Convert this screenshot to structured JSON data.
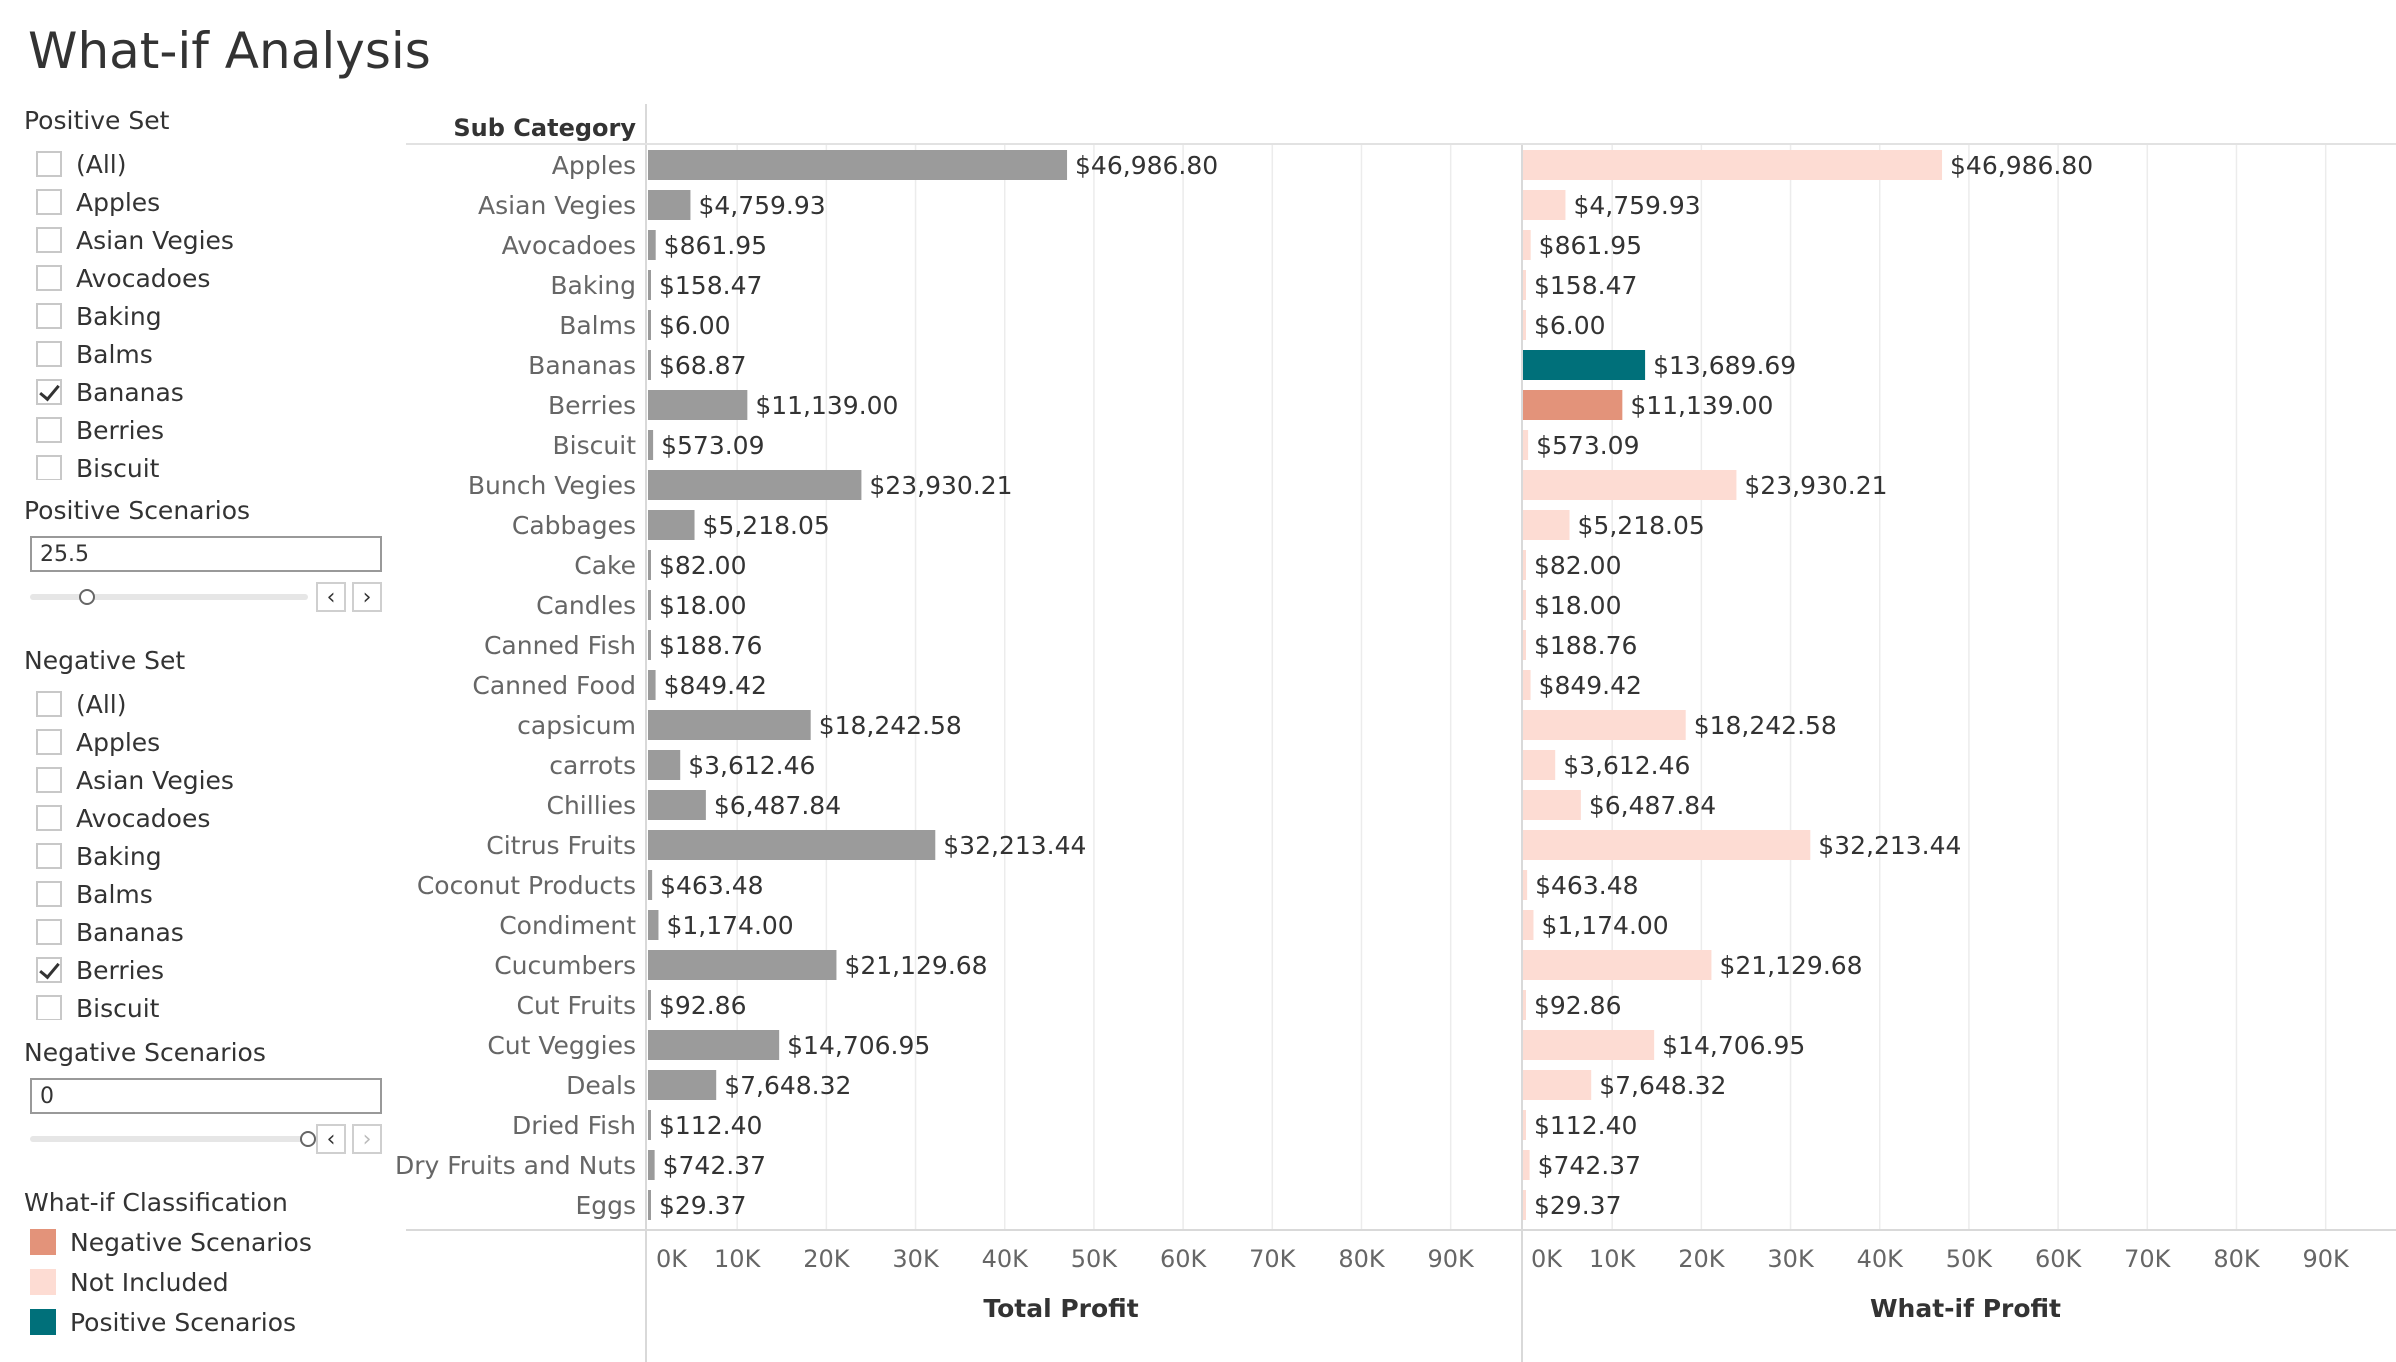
{
  "title": "What-if Analysis",
  "positive_set": {
    "label": "Positive Set",
    "items": [
      {
        "label": "(All)",
        "checked": false
      },
      {
        "label": "Apples",
        "checked": false
      },
      {
        "label": "Asian Vegies",
        "checked": false
      },
      {
        "label": "Avocadoes",
        "checked": false
      },
      {
        "label": "Baking",
        "checked": false
      },
      {
        "label": "Balms",
        "checked": false
      },
      {
        "label": "Bananas",
        "checked": true
      },
      {
        "label": "Berries",
        "checked": false
      },
      {
        "label": "Biscuit",
        "checked": false
      }
    ]
  },
  "positive_scenarios": {
    "label": "Positive Scenarios",
    "value": "25.5",
    "slider_fraction": 0.18
  },
  "negative_set": {
    "label": "Negative Set",
    "items": [
      {
        "label": "(All)",
        "checked": false
      },
      {
        "label": "Apples",
        "checked": false
      },
      {
        "label": "Asian Vegies",
        "checked": false
      },
      {
        "label": "Avocadoes",
        "checked": false
      },
      {
        "label": "Baking",
        "checked": false
      },
      {
        "label": "Balms",
        "checked": false
      },
      {
        "label": "Bananas",
        "checked": false
      },
      {
        "label": "Berries",
        "checked": true
      },
      {
        "label": "Biscuit",
        "checked": false
      }
    ]
  },
  "negative_scenarios": {
    "label": "Negative Scenarios",
    "value": "0",
    "slider_fraction": 1.0
  },
  "legend": {
    "title": "What-if Classification",
    "items": [
      {
        "label": "Negative Scenarios",
        "color": "#e3937a"
      },
      {
        "label": "Not Included",
        "color": "#fddcd3"
      },
      {
        "label": "Positive Scenarios",
        "color": "#00707a"
      }
    ]
  },
  "chart_data": {
    "type": "bar",
    "row_header": "Sub Category",
    "categories": [
      "Apples",
      "Asian Vegies",
      "Avocadoes",
      "Baking",
      "Balms",
      "Bananas",
      "Berries",
      "Biscuit",
      "Bunch Vegies",
      "Cabbages",
      "Cake",
      "Candles",
      "Canned Fish",
      "Canned Food",
      "capsicum",
      "carrots",
      "Chillies",
      "Citrus Fruits",
      "Coconut Products",
      "Condiment",
      "Cucumbers",
      "Cut Fruits",
      "Cut Veggies",
      "Deals",
      "Dried Fish",
      "Dry Fruits and Nuts",
      "Eggs"
    ],
    "series": [
      {
        "name": "Total Profit",
        "values": [
          46986.8,
          4759.93,
          861.95,
          158.47,
          6.0,
          68.87,
          11139.0,
          573.09,
          23930.21,
          5218.05,
          82.0,
          18.0,
          188.76,
          849.42,
          18242.58,
          3612.46,
          6487.84,
          32213.44,
          463.48,
          1174.0,
          21129.68,
          92.86,
          14706.95,
          7648.32,
          112.4,
          742.37,
          29.37
        ],
        "labels": [
          "$46,986.80",
          "$4,759.93",
          "$861.95",
          "$158.47",
          "$6.00",
          "$68.87",
          "$11,139.00",
          "$573.09",
          "$23,930.21",
          "$5,218.05",
          "$82.00",
          "$18.00",
          "$188.76",
          "$849.42",
          "$18,242.58",
          "$3,612.46",
          "$6,487.84",
          "$32,213.44",
          "$463.48",
          "$1,174.00",
          "$21,129.68",
          "$92.86",
          "$14,706.95",
          "$7,648.32",
          "$112.40",
          "$742.37",
          "$29.37"
        ],
        "color": "#9b9b9b"
      },
      {
        "name": "What-if Profit",
        "values": [
          46986.8,
          4759.93,
          861.95,
          158.47,
          6.0,
          13689.69,
          11139.0,
          573.09,
          23930.21,
          5218.05,
          82.0,
          18.0,
          188.76,
          849.42,
          18242.58,
          3612.46,
          6487.84,
          32213.44,
          463.48,
          1174.0,
          21129.68,
          92.86,
          14706.95,
          7648.32,
          112.4,
          742.37,
          29.37
        ],
        "labels": [
          "$46,986.80",
          "$4,759.93",
          "$861.95",
          "$158.47",
          "$6.00",
          "$13,689.69",
          "$11,139.00",
          "$573.09",
          "$23,930.21",
          "$5,218.05",
          "$82.00",
          "$18.00",
          "$188.76",
          "$849.42",
          "$18,242.58",
          "$3,612.46",
          "$6,487.84",
          "$32,213.44",
          "$463.48",
          "$1,174.00",
          "$21,129.68",
          "$92.86",
          "$14,706.95",
          "$7,648.32",
          "$112.40",
          "$742.37",
          "$29.37"
        ],
        "classification": [
          "Not Included",
          "Not Included",
          "Not Included",
          "Not Included",
          "Not Included",
          "Positive Scenarios",
          "Negative Scenarios",
          "Not Included",
          "Not Included",
          "Not Included",
          "Not Included",
          "Not Included",
          "Not Included",
          "Not Included",
          "Not Included",
          "Not Included",
          "Not Included",
          "Not Included",
          "Not Included",
          "Not Included",
          "Not Included",
          "Not Included",
          "Not Included",
          "Not Included",
          "Not Included",
          "Not Included",
          "Not Included"
        ]
      }
    ],
    "xlim": [
      0,
      98000
    ],
    "ticks": [
      0,
      10000,
      20000,
      30000,
      40000,
      50000,
      60000,
      70000,
      80000,
      90000
    ],
    "tick_labels": [
      "0K",
      "10K",
      "20K",
      "30K",
      "40K",
      "50K",
      "60K",
      "70K",
      "80K",
      "90K"
    ],
    "grid": true
  }
}
